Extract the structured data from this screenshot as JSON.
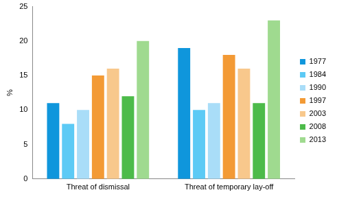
{
  "chart_data": {
    "type": "bar",
    "categories": [
      "Threat of dismissal",
      "Threat of temporary lay-off"
    ],
    "y_label": "%",
    "series": [
      {
        "name": "1977",
        "color": "#0f96dc",
        "values": [
          11,
          19
        ]
      },
      {
        "name": "1984",
        "color": "#5ccaf5",
        "values": [
          8,
          10
        ]
      },
      {
        "name": "1990",
        "color": "#a9ddf8",
        "values": [
          10,
          11
        ]
      },
      {
        "name": "1997",
        "color": "#f39a35",
        "values": [
          15,
          18
        ]
      },
      {
        "name": "2003",
        "color": "#f8c88c",
        "values": [
          16,
          16
        ]
      },
      {
        "name": "2008",
        "color": "#4dbb4a",
        "values": [
          12,
          11
        ]
      },
      {
        "name": "2013",
        "color": "#9fda8f",
        "values": [
          20,
          23
        ]
      }
    ],
    "ylim": [
      0,
      25
    ],
    "yticks": [
      0,
      5,
      10,
      15,
      20,
      25
    ],
    "grid": false,
    "legend": "right"
  }
}
